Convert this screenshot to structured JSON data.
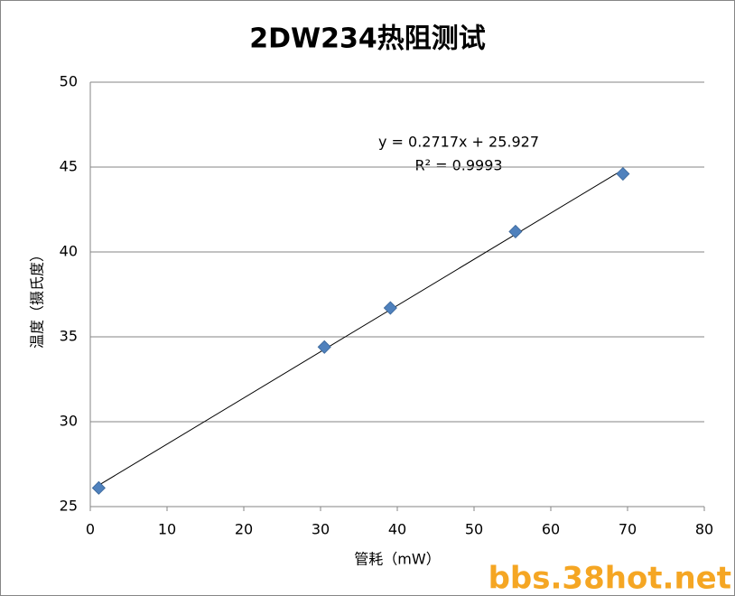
{
  "chart_data": {
    "type": "scatter",
    "title": "2DW234热阻测试",
    "x_label": "管耗（mW）",
    "y_label": "温度（摄氏度）",
    "annotations": [
      "y = 0.2717x + 25.927",
      "R² = 0.9993"
    ],
    "watermark": "bbs.38hot.net",
    "series": [
      {
        "name": "温度",
        "color": "#4f81bd",
        "x": [
          1.1,
          30.5,
          39.1,
          55.4,
          69.4
        ],
        "values": [
          26.1,
          34.4,
          36.7,
          41.2,
          44.6
        ]
      }
    ],
    "trendline": true,
    "xlim": [
      0,
      80
    ],
    "xticks": [
      0,
      10,
      20,
      30,
      40,
      50,
      60,
      70,
      80
    ],
    "ylim": [
      25,
      50
    ],
    "yticks": [
      25,
      30,
      35,
      40,
      45,
      50
    ],
    "grid": true
  }
}
